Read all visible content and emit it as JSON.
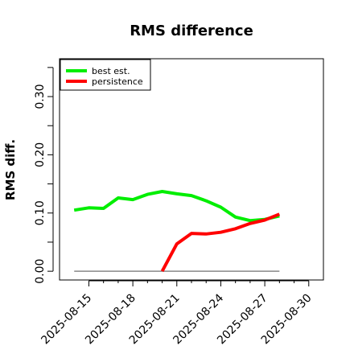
{
  "chart_data": {
    "type": "line",
    "title": "RMS difference",
    "xlabel": "",
    "ylabel": "RMS diff.",
    "xlim": [
      "2025-08-13",
      "2025-08-31"
    ],
    "ylim": [
      -0.015,
      0.365
    ],
    "x_ticks": [
      "2025-08-15",
      "2025-08-18",
      "2025-08-21",
      "2025-08-24",
      "2025-08-27",
      "2025-08-30"
    ],
    "y_major_ticks": [
      0.0,
      0.1,
      0.2,
      0.3
    ],
    "y_major_tick_labels": [
      "0.00",
      "0.10",
      "0.20",
      "0.30"
    ],
    "y_minor_ticks": [
      0.05,
      0.15,
      0.25,
      0.35
    ],
    "legend": {
      "position": "top-left",
      "entries": [
        "best est.",
        "persistence"
      ]
    },
    "grid": false,
    "zero_line": {
      "y": 0.0,
      "x_from": "2025-08-14",
      "x_to": "2025-08-28",
      "color": "#888888"
    },
    "series": [
      {
        "name": "best est.",
        "color": "#00ee00",
        "points": [
          [
            "2025-08-14",
            0.105
          ],
          [
            "2025-08-15",
            0.109
          ],
          [
            "2025-08-16",
            0.108
          ],
          [
            "2025-08-17",
            0.126
          ],
          [
            "2025-08-18",
            0.123
          ],
          [
            "2025-08-19",
            0.132
          ],
          [
            "2025-08-20",
            0.137
          ],
          [
            "2025-08-21",
            0.133
          ],
          [
            "2025-08-22",
            0.13
          ],
          [
            "2025-08-23",
            0.121
          ],
          [
            "2025-08-24",
            0.11
          ],
          [
            "2025-08-25",
            0.093
          ],
          [
            "2025-08-26",
            0.087
          ],
          [
            "2025-08-27",
            0.089
          ],
          [
            "2025-08-28",
            0.095
          ]
        ]
      },
      {
        "name": "persistence",
        "color": "#ff0000",
        "points": [
          [
            "2025-08-20",
            0.0
          ],
          [
            "2025-08-21",
            0.047
          ],
          [
            "2025-08-22",
            0.065
          ],
          [
            "2025-08-23",
            0.064
          ],
          [
            "2025-08-24",
            0.067
          ],
          [
            "2025-08-25",
            0.073
          ],
          [
            "2025-08-26",
            0.082
          ],
          [
            "2025-08-27",
            0.088
          ],
          [
            "2025-08-28",
            0.098
          ]
        ]
      }
    ]
  }
}
